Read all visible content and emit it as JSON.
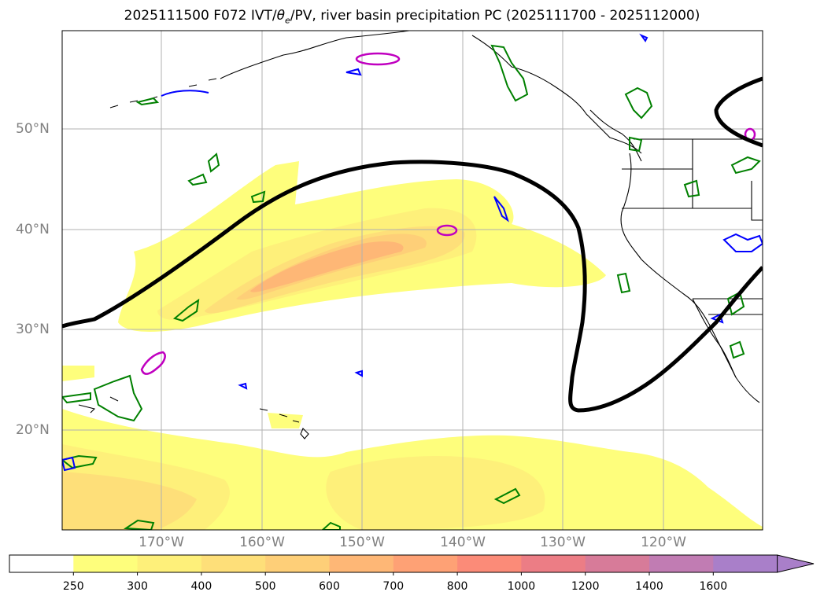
{
  "title": "2025111500 F072 IVT/θe/PV, river basin precipitation PC (2025111700 - 2025112000)",
  "title_parts": {
    "prefix": "2025111500 F072 IVT/",
    "theta": "θ",
    "theta_sub": "e",
    "suffix": "/PV, river basin precipitation PC (2025111700 - 2025112000)"
  },
  "lat_labels": [
    "50°N",
    "40°N",
    "30°N",
    "20°N"
  ],
  "lon_labels": [
    "170°W",
    "160°W",
    "150°W",
    "140°W",
    "130°W",
    "120°W"
  ],
  "colorbar": {
    "levels": [
      "250",
      "300",
      "400",
      "500",
      "600",
      "700",
      "800",
      "1000",
      "1200",
      "1400",
      "1600"
    ],
    "colors": [
      "#ffffff",
      "#fefe7c",
      "#fef07a",
      "#fedf79",
      "#fecf78",
      "#feb776",
      "#fea175",
      "#fb8b78",
      "#ec7d85",
      "#d77b99",
      "#c17cb3",
      "#a97fc9"
    ]
  },
  "colors": {
    "ivt_fill_1": "#fefe7c",
    "ivt_fill_2": "#fef07a",
    "ivt_fill_3": "#fedf79",
    "ivt_fill_4": "#fecf78",
    "ivt_fill_5": "#feb776",
    "ivt_fill_6": "#fea175",
    "theta_e_contour": "#000000",
    "precip_contour": "#008000",
    "pv_contour_pos": "#0000ff",
    "pv_contour_mag": "#c000c0",
    "coastline": "#000000",
    "gridline": "#b0b0b0",
    "axis_label": "#808080"
  }
}
